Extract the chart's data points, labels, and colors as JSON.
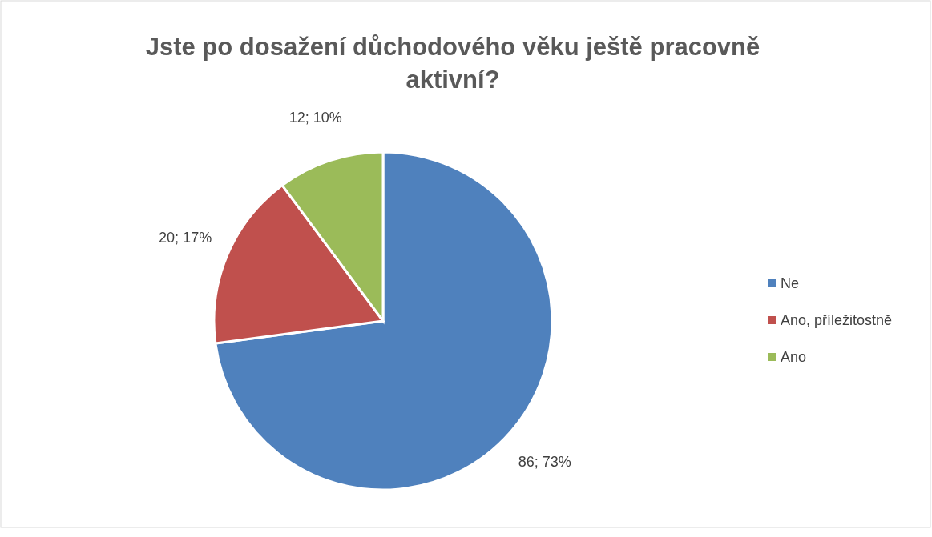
{
  "chart_data": {
    "type": "pie",
    "title": "Jste po dosažení důchodového věku ještě pracovně aktivní?",
    "categories": [
      "Ne",
      "Ano, příležitostně",
      "Ano"
    ],
    "values": [
      86,
      20,
      12
    ],
    "colors": [
      "#4f81bd",
      "#c0504d",
      "#9bbb59"
    ],
    "value_labels": [
      "86; 73%",
      "20; 17%",
      "12; 10%"
    ],
    "legend": "right"
  }
}
